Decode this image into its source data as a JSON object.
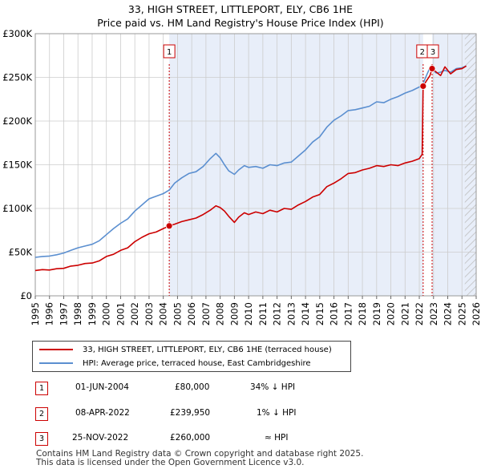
{
  "title_line1": "33, HIGH STREET, LITTLEPORT, ELY, CB6 1HE",
  "title_line2": "Price paid vs. HM Land Registry's House Price Index (HPI)",
  "colors": {
    "price_line": "#cc0000",
    "hpi_line": "#5b8fd0",
    "shade": "#e8eef9",
    "grid": "#cccccc",
    "marker_line": "#cc0000"
  },
  "legend": {
    "price_label": "33, HIGH STREET, LITTLEPORT, ELY, CB6 1HE (terraced house)",
    "hpi_label": "HPI: Average price, terraced house, East Cambridgeshire"
  },
  "transactions": [
    {
      "num": "1",
      "date": "01-JUN-2004",
      "price": "£80,000",
      "hpi_rel": "34% ↓ HPI"
    },
    {
      "num": "2",
      "date": "08-APR-2022",
      "price": "£239,950",
      "hpi_rel": "1% ↓ HPI"
    },
    {
      "num": "3",
      "date": "25-NOV-2022",
      "price": "£260,000",
      "hpi_rel": "≈ HPI"
    }
  ],
  "footer": {
    "line1": "Contains HM Land Registry data © Crown copyright and database right 2025.",
    "line2": "This data is licensed under the Open Government Licence v3.0."
  },
  "chart_data": {
    "type": "line",
    "title": "Price paid vs. HM Land Registry's House Price Index (HPI)",
    "xlabel": "",
    "ylabel": "",
    "xlim": [
      1995,
      2026
    ],
    "ylim": [
      0,
      300000
    ],
    "x_ticks": [
      "1995",
      "1996",
      "1997",
      "1998",
      "1999",
      "2000",
      "2001",
      "2002",
      "2003",
      "2004",
      "2005",
      "2006",
      "2007",
      "2008",
      "2009",
      "2010",
      "2011",
      "2012",
      "2013",
      "2014",
      "2015",
      "2016",
      "2017",
      "2018",
      "2019",
      "2020",
      "2021",
      "2022",
      "2023",
      "2024",
      "2025",
      "2026"
    ],
    "y_ticks": [
      {
        "value": 0,
        "label": "£0"
      },
      {
        "value": 50000,
        "label": "£50K"
      },
      {
        "value": 100000,
        "label": "£100K"
      },
      {
        "value": 150000,
        "label": "£150K"
      },
      {
        "value": 200000,
        "label": "£200K"
      },
      {
        "value": 250000,
        "label": "£250K"
      },
      {
        "value": 300000,
        "label": "£300K"
      }
    ],
    "shaded_periods": [
      [
        2004.42,
        2022.27
      ],
      [
        2022.9,
        2026
      ]
    ],
    "hatched_period": [
      2025.2,
      2026
    ],
    "markers": [
      {
        "num": "1",
        "x": 2004.42,
        "y": 80000
      },
      {
        "num": "2",
        "x": 2022.27,
        "y": 239950
      },
      {
        "num": "3",
        "x": 2022.9,
        "y": 260000
      }
    ],
    "series": [
      {
        "name": "33, HIGH STREET, LITTLEPORT, ELY, CB6 1HE (terraced house)",
        "x": [
          1995,
          1995.5,
          1996,
          1996.5,
          1997,
          1997.5,
          1998,
          1998.5,
          1999,
          1999.5,
          2000,
          2000.5,
          2001,
          2001.5,
          2002,
          2002.5,
          2003,
          2003.5,
          2004,
          2004.42,
          2004.8,
          2005.3,
          2005.8,
          2006.3,
          2006.8,
          2007.3,
          2007.7,
          2008,
          2008.3,
          2008.6,
          2009,
          2009.3,
          2009.7,
          2010,
          2010.5,
          2011,
          2011.5,
          2012,
          2012.5,
          2013,
          2013.5,
          2014,
          2014.5,
          2015,
          2015.5,
          2016,
          2016.5,
          2017,
          2017.5,
          2018,
          2018.5,
          2019,
          2019.5,
          2020,
          2020.5,
          2021,
          2021.5,
          2022,
          2022.2,
          2022.27,
          2022.5,
          2022.75,
          2022.9,
          2023.2,
          2023.5,
          2023.8,
          2024.2,
          2024.6,
          2025,
          2025.3
        ],
        "values": [
          29000,
          30000,
          29500,
          31000,
          31500,
          34000,
          35000,
          37000,
          37500,
          40000,
          45000,
          47500,
          52000,
          55000,
          62000,
          67000,
          71000,
          73000,
          77000,
          80000,
          82000,
          85000,
          87000,
          89000,
          93000,
          98000,
          103000,
          101000,
          97000,
          91000,
          84000,
          90000,
          95000,
          93000,
          96000,
          94000,
          98000,
          96000,
          100000,
          99000,
          104000,
          108000,
          113000,
          116000,
          125000,
          129000,
          134000,
          140000,
          141000,
          144000,
          146000,
          149000,
          148000,
          150000,
          149000,
          152000,
          154000,
          157000,
          162000,
          239950,
          246000,
          252000,
          260000,
          256000,
          252000,
          262000,
          254000,
          259000,
          260000,
          263000
        ]
      },
      {
        "name": "HPI: Average price, terraced house, East Cambridgeshire",
        "x": [
          1995,
          1995.5,
          1996,
          1996.5,
          1997,
          1997.5,
          1998,
          1998.5,
          1999,
          1999.5,
          2000,
          2000.5,
          2001,
          2001.5,
          2002,
          2002.5,
          2003,
          2003.5,
          2004,
          2004.42,
          2004.8,
          2005.3,
          2005.8,
          2006.3,
          2006.8,
          2007.3,
          2007.7,
          2008,
          2008.3,
          2008.6,
          2009,
          2009.3,
          2009.7,
          2010,
          2010.5,
          2011,
          2011.5,
          2012,
          2012.5,
          2013,
          2013.5,
          2014,
          2014.5,
          2015,
          2015.5,
          2016,
          2016.5,
          2017,
          2017.5,
          2018,
          2018.5,
          2019,
          2019.5,
          2020,
          2020.5,
          2021,
          2021.5,
          2022,
          2022.27,
          2022.5,
          2022.75,
          2022.9,
          2023.2,
          2023.5,
          2023.8,
          2024.2,
          2024.6,
          2025,
          2025.3
        ],
        "values": [
          44000,
          45000,
          45500,
          47000,
          49000,
          52000,
          55000,
          57000,
          59000,
          63000,
          70000,
          77000,
          83000,
          88000,
          97000,
          104000,
          111000,
          114000,
          117000,
          121000,
          129000,
          135000,
          140000,
          142000,
          148000,
          157000,
          163000,
          158000,
          150000,
          143000,
          139000,
          144000,
          149000,
          147000,
          148000,
          146000,
          150000,
          149000,
          152000,
          153000,
          160000,
          167000,
          176000,
          182000,
          193000,
          201000,
          206000,
          212000,
          213000,
          215000,
          217000,
          222000,
          221000,
          225000,
          228000,
          232000,
          235000,
          239000,
          243000,
          252000,
          261000,
          259000,
          255000,
          256000,
          258000,
          256000,
          260000,
          261000,
          263000
        ]
      }
    ]
  }
}
